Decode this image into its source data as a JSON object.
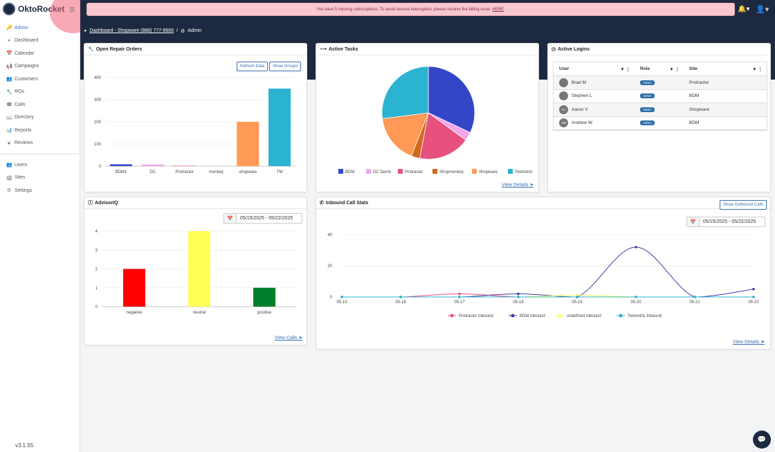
{
  "app": {
    "name": "OktoRocket",
    "version": "v3.1.55"
  },
  "sidebar": {
    "items": [
      {
        "label": "Admin",
        "icon": "key-icon",
        "active": true
      },
      {
        "label": "Dashboard",
        "icon": "dashboard-icon"
      },
      {
        "label": "Calendar",
        "icon": "calendar-icon"
      },
      {
        "label": "Campaigns",
        "icon": "megaphone-icon"
      },
      {
        "label": "Customers",
        "icon": "users-icon"
      },
      {
        "label": "ROs",
        "icon": "wrench-icon"
      },
      {
        "label": "Calls",
        "icon": "phone-icon"
      },
      {
        "label": "Directory",
        "icon": "book-icon"
      },
      {
        "label": "Reports",
        "icon": "bar-chart-icon"
      },
      {
        "label": "Reviews",
        "icon": "star-icon"
      }
    ],
    "admin_items": [
      {
        "label": "Users",
        "icon": "users-icon"
      },
      {
        "label": "Sites",
        "icon": "building-icon"
      },
      {
        "label": "Settings",
        "icon": "gear-icon"
      }
    ]
  },
  "alert": {
    "text": "You have 5 missing subscriptions. To avoid service interruption, please resolve the billing issue",
    "link": "HERE",
    "end": "."
  },
  "breadcrumb": {
    "link": "Dashboard - Shopware (888) 777-6666",
    "sep": "/",
    "current": "Admin"
  },
  "repair_orders": {
    "title": "Open Repair Orders",
    "refresh_label": "Refresh Data",
    "groups_label": "Show Groups"
  },
  "active_tasks": {
    "title": "Active Tasks",
    "view_details": "View Details"
  },
  "active_logins": {
    "title": "Active Logins",
    "columns": [
      "User",
      "Role",
      "Site"
    ],
    "rows": [
      {
        "user": "Brad M",
        "initials": "",
        "role": "Admin",
        "site": "Protractor"
      },
      {
        "user": "Stephen L",
        "initials": "",
        "role": "Admin",
        "site": "BDM"
      },
      {
        "user": "Aaron V",
        "initials": "AV",
        "role": "Admin",
        "site": "Shopware"
      },
      {
        "user": "Andrew W",
        "initials": "AW",
        "role": "Admin",
        "site": "BDM"
      }
    ]
  },
  "advisoriq": {
    "title": "AdvisorIQ",
    "date_range": "05/15/2025 - 05/22/2025",
    "view_calls": "View Calls"
  },
  "call_stats": {
    "title": "Inbound Call Stats",
    "outbound_label": "Show Outbound Calls",
    "date_range": "05/15/2025 - 05/22/2025",
    "view_details": "View Details"
  },
  "chart_data": [
    {
      "type": "bar",
      "title": "Open Repair Orders",
      "categories": [
        "BDM1",
        "DC",
        "Protractor",
        "monkey",
        "shopware",
        "TM"
      ],
      "values": [
        8,
        7,
        2,
        0,
        200,
        350
      ],
      "colors": [
        "#3446c8",
        "#f0a6e8",
        "#e06a8c",
        "#d2691e",
        "#ff9955",
        "#2bb3d2"
      ],
      "ylim": [
        0,
        400
      ],
      "yticks": [
        0,
        100,
        200,
        300,
        400
      ]
    },
    {
      "type": "pie",
      "title": "Active Tasks",
      "labels": [
        "BDM",
        "DC Demo",
        "Protractor",
        "Shopmonkey",
        "Shopware",
        "Tekmetric"
      ],
      "values": [
        32,
        3,
        18,
        3,
        17,
        27
      ],
      "colors": [
        "#3446c8",
        "#f0a6e8",
        "#e8507e",
        "#d2691e",
        "#ff9955",
        "#2bb3d2"
      ]
    },
    {
      "type": "bar",
      "title": "AdvisorIQ",
      "categories": [
        "negative",
        "neutral",
        "positive"
      ],
      "values": [
        2,
        4,
        1
      ],
      "colors": [
        "#ff0000",
        "#ffff55",
        "#00802b"
      ],
      "ylim": [
        0,
        4
      ],
      "yticks": [
        0,
        1,
        2,
        3,
        4
      ]
    },
    {
      "type": "line",
      "title": "Inbound Call Stats",
      "x": [
        "05-15",
        "05-16",
        "05-17",
        "05-18",
        "05-19",
        "05-20",
        "05-21",
        "05-22"
      ],
      "ylim": [
        0,
        40
      ],
      "yticks": [
        0,
        20,
        40
      ],
      "series": [
        {
          "name": "Protractor Inbound",
          "color": "#e8507e",
          "values": [
            0,
            0,
            2,
            0,
            0,
            0,
            0,
            0
          ]
        },
        {
          "name": "BDM Inbound",
          "color": "#3a3aa8",
          "values": [
            0,
            0,
            0,
            2,
            0,
            32,
            0,
            5
          ]
        },
        {
          "name": "undefined Inbound",
          "color": "#ffff55",
          "values": [
            0,
            0,
            0,
            0,
            1,
            0,
            0,
            0
          ]
        },
        {
          "name": "Tekmetric Inbound",
          "color": "#2bb3d2",
          "values": [
            0,
            0,
            0,
            0,
            0,
            0,
            0,
            0
          ]
        }
      ]
    }
  ]
}
